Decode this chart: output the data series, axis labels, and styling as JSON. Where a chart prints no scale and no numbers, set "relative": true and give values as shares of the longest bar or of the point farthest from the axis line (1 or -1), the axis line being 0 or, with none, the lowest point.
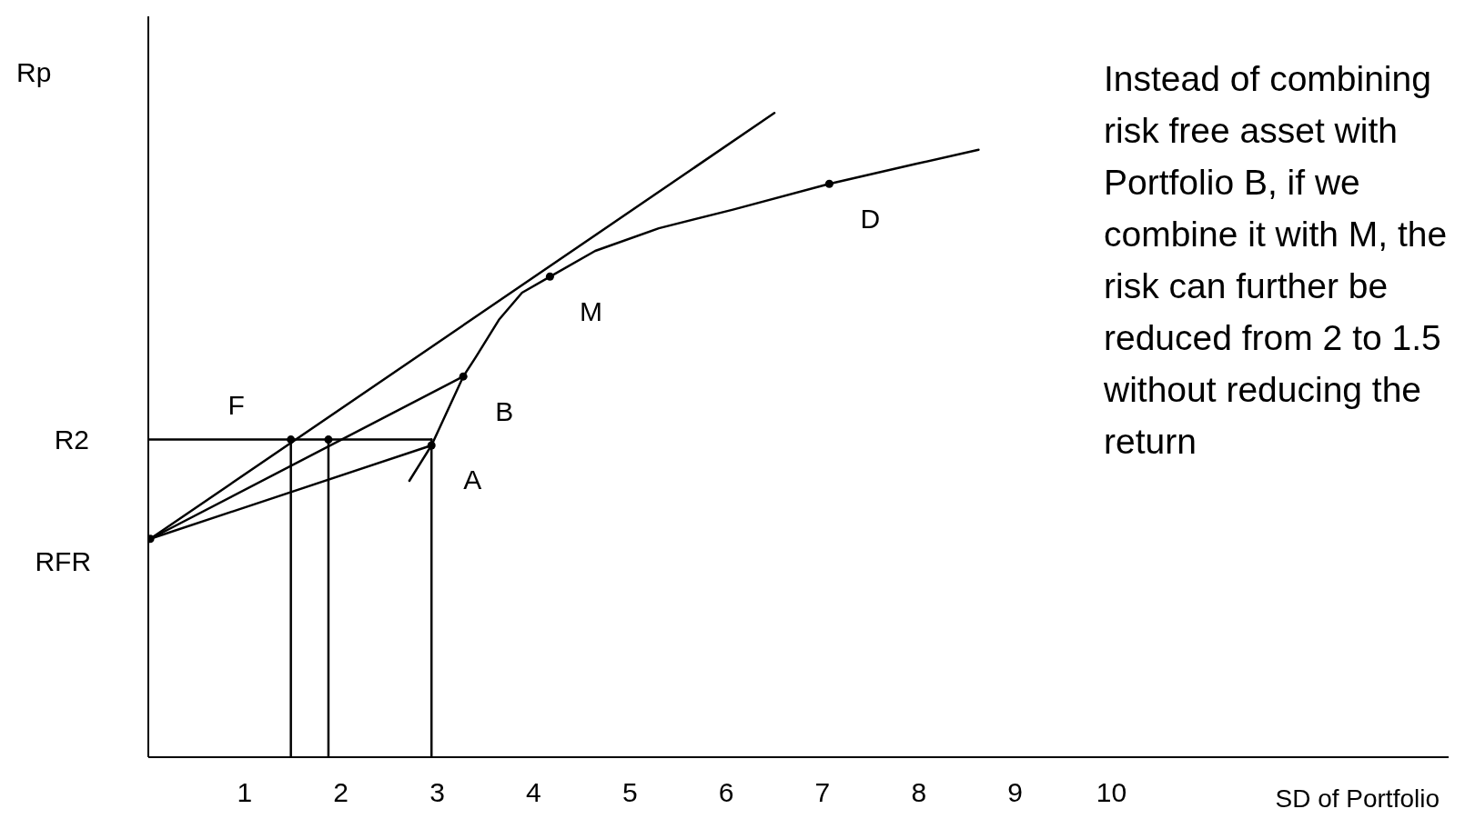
{
  "chart_data": {
    "type": "line",
    "relative": true,
    "ylabel": "Rp",
    "xlabel": "SD of Portfolio",
    "xlim": [
      0,
      13.5
    ],
    "xticks": [
      1,
      2,
      3,
      4,
      5,
      6,
      7,
      8,
      9,
      10
    ],
    "grid": false,
    "marker": "none",
    "line_style": "solid",
    "series": [
      {
        "color": "#000000",
        "x": [
          2.71,
          2.94,
          3.27,
          3.4,
          3.64,
          3.88,
          4.17,
          4.64,
          5.3,
          6.07,
          7.07,
          7.97,
          8.62
        ],
        "values": [
          0.429,
          0.484,
          0.591,
          0.621,
          0.679,
          0.721,
          0.746,
          0.786,
          0.821,
          0.85,
          0.89,
          0.921,
          0.943
        ]
      },
      {
        "color": "#000000",
        "x": [
          0.02,
          6.5
        ],
        "values": [
          0.339,
          1
        ]
      },
      {
        "color": "#000000",
        "x": [
          0.02,
          2.94
        ],
        "values": [
          0.339,
          0.484
        ]
      },
      {
        "color": "#000000",
        "x": [
          0.02,
          3.27
        ],
        "values": [
          0.339,
          0.591
        ]
      },
      {
        "color": "#000000",
        "x": [
          0,
          2.94
        ],
        "values": [
          0.493,
          0.493
        ]
      },
      {
        "color": "#000000",
        "x": [
          1.48,
          1.48
        ],
        "values": [
          0,
          0.493
        ]
      },
      {
        "color": "#000000",
        "x": [
          1.87,
          1.87
        ],
        "values": [
          0,
          0.493
        ]
      },
      {
        "color": "#000000",
        "x": [
          2.94,
          2.94
        ],
        "values": [
          0,
          0.493
        ]
      },
      {
        "type": "scatter",
        "marker": "circle",
        "color": "#000000",
        "x": [
          0.02,
          1.48,
          1.87,
          2.94,
          3.27,
          4.17,
          7.07
        ],
        "values": [
          0.339,
          0.493,
          0.493,
          0.484,
          0.591,
          0.746,
          0.89
        ]
      }
    ],
    "annotations": [
      {
        "text": "A",
        "x": 2.94,
        "y": 0.484
      },
      {
        "text": "B",
        "x": 3.27,
        "y": 0.591
      },
      {
        "text": "M",
        "x": 4.17,
        "y": 0.746
      },
      {
        "text": "D",
        "x": 7.07,
        "y": 0.89
      },
      {
        "text": "F",
        "x": 1.48,
        "y": 0.493
      },
      {
        "text": "R2",
        "x": 0,
        "y": 0.493
      },
      {
        "text": "RFR",
        "x": 0.02,
        "y": 0.339
      },
      "Instead of combining risk free asset with Portfolio B, if we combine it with M, the risk can further be reduced from 2 to 1.5 without reducing the return"
    ]
  }
}
